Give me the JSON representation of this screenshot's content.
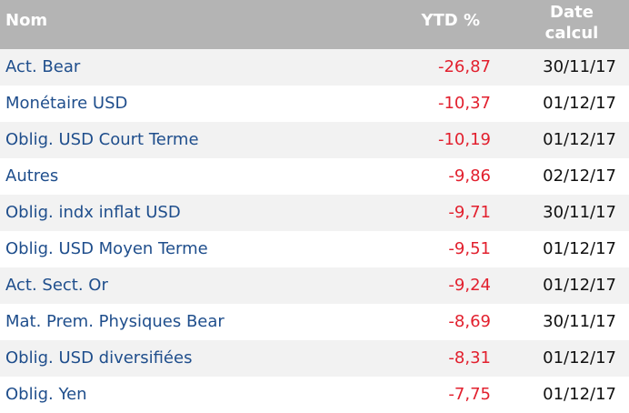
{
  "header": {
    "columns": [
      "Nom",
      "YTD %",
      "Date calcul"
    ]
  },
  "table": {
    "rows": [
      [
        "Act. Bear",
        "-26,87",
        "30/11/17"
      ],
      [
        "Monétaire USD",
        "-10,37",
        "01/12/17"
      ],
      [
        "Oblig. USD Court Terme",
        "-10,19",
        "01/12/17"
      ],
      [
        "Autres",
        "-9,86",
        "02/12/17"
      ],
      [
        "Oblig. indx inflat USD",
        "-9,71",
        "30/11/17"
      ],
      [
        "Oblig. USD Moyen Terme",
        "-9,51",
        "01/12/17"
      ],
      [
        "Act. Sect. Or",
        "-9,24",
        "01/12/17"
      ],
      [
        "Mat. Prem. Physiques Bear",
        "-8,69",
        "30/11/17"
      ],
      [
        "Oblig. USD diversifiées",
        "-8,31",
        "01/12/17"
      ],
      [
        "Oblig. Yen",
        "-7,75",
        "01/12/17"
      ]
    ]
  }
}
